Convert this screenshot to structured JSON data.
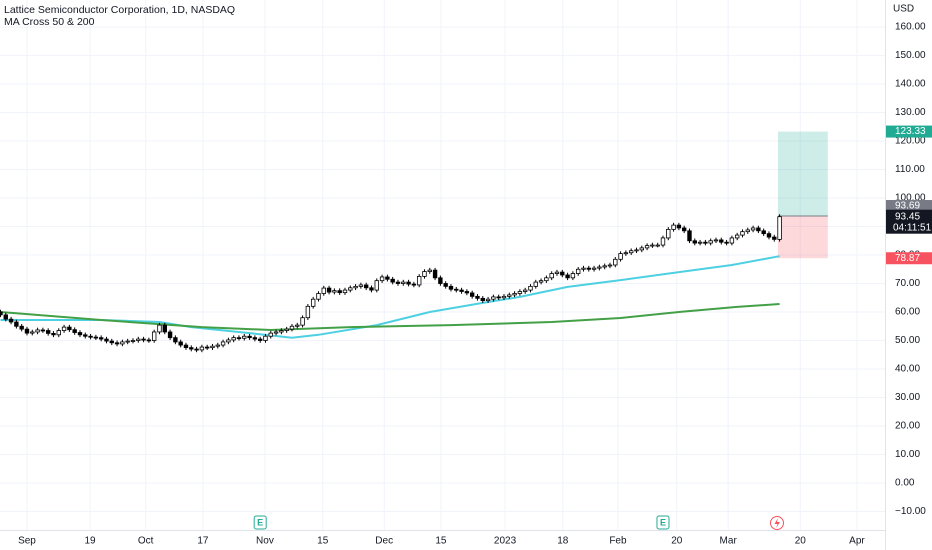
{
  "chart_data": {
    "type": "candlestick",
    "title": "Lattice Semiconductor Corporation, 1D, NASDAQ",
    "subtitle": "MA Cross 50 & 200",
    "currency": "USD",
    "up_color": "#ffffff",
    "down_color": "#000000",
    "grid": true,
    "x": [
      -5,
      -4,
      -3,
      -2,
      -1,
      0,
      1,
      2,
      3,
      4,
      5,
      6,
      7,
      8,
      9,
      10,
      11,
      12,
      13,
      14,
      15,
      16,
      17,
      18,
      19,
      20,
      21,
      22,
      23,
      24,
      25,
      26,
      27,
      28,
      29,
      30,
      31,
      32,
      33,
      34,
      35,
      36,
      37,
      38,
      39,
      40,
      41,
      42,
      43,
      44,
      45,
      46,
      47,
      48,
      49,
      50,
      51,
      52,
      53,
      54,
      55,
      56,
      57,
      58,
      59,
      60,
      61,
      62,
      63,
      64,
      65,
      66,
      67,
      68,
      69,
      70,
      71,
      72,
      73,
      74,
      75,
      76,
      77,
      78,
      79,
      80,
      81,
      82,
      83,
      84,
      85,
      86,
      87,
      88,
      89,
      90,
      91,
      92,
      93,
      94,
      95,
      96,
      97,
      98,
      99,
      100,
      101,
      102,
      103,
      104,
      105,
      106,
      107,
      108,
      109,
      110,
      111,
      112,
      113,
      114,
      115,
      116,
      117,
      118,
      119,
      120,
      121,
      122,
      123,
      124,
      125,
      126,
      127,
      128,
      129,
      130,
      131,
      132,
      133,
      134,
      135,
      136,
      137,
      138,
      139,
      140,
      141,
      142
    ],
    "open": [
      60,
      59,
      57.5,
      56.5,
      55,
      54,
      52.6,
      53,
      53.7,
      53.5,
      52.5,
      52,
      53.5,
      54.7,
      53.8,
      52.8,
      52,
      51.5,
      51.2,
      51,
      50.5,
      49.8,
      49.2,
      48.8,
      49.5,
      49.8,
      50,
      50.5,
      50.2,
      50,
      53,
      55.4,
      53,
      51,
      49.5,
      48.4,
      47.5,
      47,
      46.7,
      47.7,
      47.5,
      48,
      48.4,
      49.5,
      50.2,
      51,
      50.8,
      51.5,
      51,
      50.5,
      50,
      51.5,
      52.6,
      53,
      53.5,
      54,
      55,
      55.4,
      58,
      62,
      64.5,
      66.5,
      68.4,
      67,
      67.5,
      66.8,
      67.7,
      68.5,
      69,
      69.5,
      68.5,
      67.7,
      71,
      72.3,
      71.5,
      70.5,
      70,
      70.5,
      69.8,
      69.5,
      72.5,
      74.2,
      74.7,
      72,
      70,
      69,
      68,
      67.7,
      67.2,
      66.7,
      65.5,
      64.8,
      64,
      64.5,
      65.3,
      65,
      65.5,
      66,
      66.5,
      67.2,
      67.7,
      69,
      70.5,
      71,
      72,
      73.5,
      74,
      73,
      72,
      73.5,
      75,
      75.4,
      75,
      75.4,
      75.8,
      76.2,
      76.5,
      78.5,
      80.5,
      80.8,
      81.5,
      81.8,
      82.5,
      83.3,
      83.5,
      83.5,
      86,
      89,
      90.5,
      89.5,
      88.5,
      85,
      84.2,
      84.5,
      84.2,
      85,
      85.3,
      84.5,
      84.2,
      86,
      87,
      88.2,
      88.8,
      89.5,
      88.5,
      87.5,
      86.3,
      85.5
    ],
    "high": [
      60.8,
      59.8,
      58.3,
      57.3,
      55.8,
      54.8,
      53.8,
      54.5,
      54.5,
      54.3,
      53.3,
      54.3,
      55.5,
      55.5,
      54.6,
      53.6,
      52.8,
      52.3,
      52,
      51.8,
      51.3,
      50.6,
      50,
      50.3,
      50.6,
      50.8,
      51.3,
      51.3,
      51,
      53.8,
      56.2,
      56.2,
      53.8,
      51.8,
      50.3,
      49.2,
      48.3,
      47.8,
      48.5,
      48.5,
      48.8,
      49.2,
      50.3,
      51,
      51.8,
      51.8,
      52.3,
      52.3,
      51.8,
      51.3,
      52.3,
      53.4,
      53.8,
      54.3,
      54.8,
      55.8,
      56.2,
      58.8,
      62.8,
      65.3,
      67.3,
      69.2,
      69.2,
      68.3,
      68.3,
      68.5,
      69.3,
      69.8,
      70.3,
      70.3,
      69.3,
      71.8,
      73.1,
      73.1,
      72.3,
      71.3,
      71.3,
      71.3,
      70.6,
      73.3,
      75,
      75.5,
      75.5,
      72.8,
      70.8,
      69.8,
      68.8,
      68.5,
      68,
      67.5,
      66.3,
      65.6,
      65.3,
      66.1,
      66.1,
      66.3,
      66.8,
      67.3,
      68,
      68.5,
      69.8,
      71.3,
      71.8,
      72.8,
      74.3,
      74.8,
      74.8,
      73.8,
      74.3,
      75.8,
      76.2,
      76.2,
      76.2,
      76.6,
      77,
      77.3,
      79.3,
      81.3,
      81.6,
      82.3,
      82.6,
      83.3,
      84.1,
      84.3,
      84.3,
      86.8,
      89.8,
      91.3,
      91.3,
      90.3,
      89.3,
      85.8,
      85.3,
      85.3,
      85.8,
      86.1,
      86.1,
      85.3,
      86.8,
      87.8,
      89,
      89.6,
      90.3,
      90.3,
      89.3,
      88.3,
      87.1,
      94.3
    ],
    "low": [
      58.2,
      56.7,
      55.7,
      54.2,
      53.2,
      51.8,
      51.8,
      52.2,
      52.7,
      51.7,
      51.2,
      51.2,
      52.7,
      53,
      52,
      51.2,
      50.7,
      50.4,
      50.2,
      49.7,
      49,
      48.4,
      48,
      48,
      48.7,
      49,
      49.2,
      49.4,
      49.2,
      49.2,
      52.2,
      52.2,
      50.2,
      48.7,
      47.6,
      46.7,
      46.2,
      45.9,
      45.9,
      46.7,
      46.7,
      47.2,
      47.6,
      48.7,
      49.4,
      50,
      50,
      50.2,
      49.7,
      49.2,
      49.2,
      50.7,
      51.8,
      52.2,
      52.7,
      53.2,
      54.2,
      54.6,
      57.2,
      61.2,
      63.7,
      65.7,
      66.2,
      66.2,
      66,
      66,
      66.9,
      67.7,
      68.2,
      67.7,
      66.9,
      66.9,
      70.2,
      70.7,
      69.7,
      69.2,
      69.2,
      69,
      68.7,
      68.7,
      71.7,
      73.4,
      71.2,
      69.2,
      68.2,
      67.2,
      66.9,
      66.4,
      65.9,
      64.7,
      64,
      63.2,
      63.2,
      63.7,
      64.2,
      64.2,
      64.7,
      65.2,
      65.7,
      66.4,
      66.9,
      68.2,
      69.7,
      70.2,
      71.2,
      72.7,
      72.2,
      71.2,
      71.2,
      72.7,
      74.2,
      74.2,
      74.2,
      74.6,
      75,
      75.4,
      75.7,
      77.7,
      79.7,
      80,
      80.7,
      81,
      81.7,
      82.5,
      82.7,
      82.7,
      85.2,
      88.2,
      88.7,
      87.7,
      84.2,
      83.4,
      83.4,
      83.4,
      83.4,
      84.2,
      83.7,
      83.4,
      83.4,
      85.2,
      86.2,
      87.4,
      88,
      87.7,
      86.7,
      85.5,
      84.7,
      84.7
    ],
    "close": [
      59,
      57.5,
      56.5,
      55,
      54,
      52.6,
      53,
      53.7,
      53.5,
      52.5,
      52,
      53.5,
      54.7,
      53.8,
      52.8,
      52,
      51.5,
      51.2,
      51,
      50.5,
      49.8,
      49.2,
      48.8,
      49.5,
      49.8,
      50,
      50.5,
      50.2,
      50,
      53,
      55.4,
      53,
      51,
      49.5,
      48.4,
      47.5,
      47,
      46.7,
      47.7,
      47.5,
      48,
      48.4,
      49.5,
      50.2,
      51,
      50.8,
      51.5,
      51,
      50.5,
      50,
      51.5,
      52.6,
      53,
      53.5,
      54,
      55,
      55.4,
      58,
      62,
      64.5,
      66.5,
      68.4,
      67,
      67.5,
      66.8,
      67.7,
      68.5,
      69,
      69.5,
      68.5,
      67.7,
      71,
      72.3,
      71.5,
      70.5,
      70,
      70.5,
      69.8,
      69.5,
      72.5,
      74.2,
      74.7,
      72,
      70,
      69,
      68,
      67.7,
      67.2,
      66.7,
      65.5,
      64.8,
      64,
      64.5,
      65.3,
      65,
      65.5,
      66,
      66.5,
      67.2,
      67.7,
      69,
      70.5,
      71,
      72,
      73.5,
      74,
      73,
      72,
      73.5,
      75,
      75.4,
      75,
      75.4,
      75.8,
      76.2,
      76.5,
      78.5,
      80.5,
      80.8,
      81.5,
      81.8,
      82.5,
      83.3,
      83.5,
      83.5,
      86,
      89,
      90.5,
      89.5,
      88.5,
      85,
      84.2,
      84.5,
      84.2,
      85,
      85.3,
      84.5,
      84.2,
      86,
      87,
      88.2,
      88.8,
      89.5,
      88.5,
      87.5,
      86.3,
      85.5,
      93.45
    ],
    "series": [
      {
        "color": "#4dd0e1",
        "x": [
          -5,
          14,
          25,
          31,
          42,
          50,
          55,
          66,
          76,
          86,
          93,
          102,
          112,
          123,
          133,
          142
        ],
        "values": [
          57.2,
          57.2,
          56.5,
          54.7,
          52.6,
          51,
          52,
          55.4,
          60,
          63.2,
          65.3,
          68.8,
          71.2,
          74,
          76.5,
          79.6
        ]
      },
      {
        "color": "#43a047",
        "x": [
          -5,
          14,
          33,
          46,
          61,
          80,
          99,
          112,
          123,
          134,
          142
        ],
        "values": [
          60,
          57.2,
          54.7,
          53.7,
          54.7,
          55.4,
          56.5,
          57.9,
          60,
          61.8,
          62.8
        ]
      }
    ],
    "position": {
      "target": 123.33,
      "entry": 93.69,
      "stop": 78.87,
      "x_start": 141.7,
      "x_end": 151.1
    },
    "countdown": "04:11:51",
    "events": [
      {
        "x": 44,
        "label": "E"
      },
      {
        "x": 120,
        "label": "E"
      }
    ],
    "xlim": [
      -5.09,
      161.89
    ],
    "xticks": [
      {
        "value": 0,
        "label": "Sep"
      },
      {
        "value": 11.9,
        "label": "19"
      },
      {
        "value": 22.4,
        "label": "Oct"
      },
      {
        "value": 33.2,
        "label": "17"
      },
      {
        "value": 44.9,
        "label": "Nov"
      },
      {
        "value": 55.8,
        "label": "15"
      },
      {
        "value": 67.4,
        "label": "Dec"
      },
      {
        "value": 78.1,
        "label": "15"
      },
      {
        "value": 90.2,
        "label": "2023"
      },
      {
        "value": 101.1,
        "label": "18"
      },
      {
        "value": 111.5,
        "label": "Feb"
      },
      {
        "value": 122.6,
        "label": "20"
      },
      {
        "value": 132.3,
        "label": "Mar"
      },
      {
        "value": 145.9,
        "label": "20"
      },
      {
        "value": 156.6,
        "label": "Apr"
      }
    ],
    "ylim": [
      -16.5,
      169.5
    ],
    "yticks": [
      {
        "value": -10,
        "label": "−10.00"
      },
      {
        "value": 0,
        "label": "0.00"
      },
      {
        "value": 10,
        "label": "10.00"
      },
      {
        "value": 20,
        "label": "20.00"
      },
      {
        "value": 30,
        "label": "30.00"
      },
      {
        "value": 40,
        "label": "40.00"
      },
      {
        "value": 50,
        "label": "50.00"
      },
      {
        "value": 60,
        "label": "60.00"
      },
      {
        "value": 70,
        "label": "70.00"
      },
      {
        "value": 80,
        "label": "80.00"
      },
      {
        "value": 90,
        "label": "90.00"
      },
      {
        "value": 100,
        "label": "100.00"
      },
      {
        "value": 110,
        "label": "110.00"
      },
      {
        "value": 120,
        "label": "120.00"
      },
      {
        "value": 130,
        "label": "130.00"
      },
      {
        "value": 140,
        "label": "140.00"
      },
      {
        "value": 150,
        "label": "150.00"
      },
      {
        "value": 160,
        "label": "160.00"
      }
    ]
  }
}
